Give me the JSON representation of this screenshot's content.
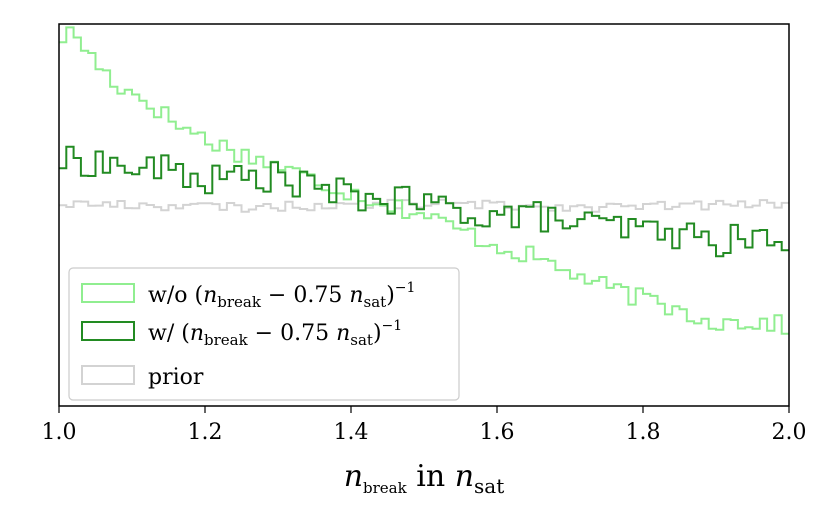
{
  "chart_data": {
    "type": "step-histogram",
    "title": "",
    "xlabel": {
      "main": "n",
      "sub": "break",
      "middle": " in ",
      "main2": "n",
      "sub2": "sat"
    },
    "ylabel": "",
    "xlim": [
      1.0,
      2.0
    ],
    "ylim": [
      0,
      1.0
    ],
    "xticks": [
      "1.0",
      "1.2",
      "1.4",
      "1.6",
      "1.8",
      "2.0"
    ],
    "xtick_values": [
      1.0,
      1.2,
      1.4,
      1.6,
      1.8,
      2.0
    ],
    "bins": 100,
    "legend_position": "lower-left",
    "series": [
      {
        "name": "w/o",
        "legend": {
          "prefix": "w/o (",
          "n": "n",
          "sub1": "break",
          "mid": " − 0.75 ",
          "n2": "n",
          "sub2": "sat",
          "suffix": ")",
          "sup": "−1"
        },
        "color": "#90ee90",
        "anchors": [
          [
            1.0,
            0.96
          ],
          [
            1.02,
            0.98
          ],
          [
            1.05,
            0.9
          ],
          [
            1.08,
            0.84
          ],
          [
            1.12,
            0.8
          ],
          [
            1.16,
            0.74
          ],
          [
            1.2,
            0.7
          ],
          [
            1.25,
            0.66
          ],
          [
            1.3,
            0.63
          ],
          [
            1.35,
            0.59
          ],
          [
            1.4,
            0.56
          ],
          [
            1.45,
            0.53
          ],
          [
            1.5,
            0.5
          ],
          [
            1.55,
            0.46
          ],
          [
            1.6,
            0.42
          ],
          [
            1.65,
            0.39
          ],
          [
            1.7,
            0.35
          ],
          [
            1.75,
            0.31
          ],
          [
            1.8,
            0.28
          ],
          [
            1.85,
            0.25
          ],
          [
            1.9,
            0.22
          ],
          [
            1.95,
            0.22
          ],
          [
            2.0,
            0.21
          ]
        ]
      },
      {
        "name": "w/",
        "legend": {
          "prefix": "w/ (",
          "n": "n",
          "sub1": "break",
          "mid": " − 0.75 ",
          "n2": "n",
          "sub2": "sat",
          "suffix": ")",
          "sup": "−1"
        },
        "color": "#228b22",
        "anchors": [
          [
            1.0,
            0.64
          ],
          [
            1.05,
            0.64
          ],
          [
            1.1,
            0.62
          ],
          [
            1.15,
            0.62
          ],
          [
            1.2,
            0.59
          ],
          [
            1.25,
            0.6
          ],
          [
            1.3,
            0.6
          ],
          [
            1.35,
            0.57
          ],
          [
            1.4,
            0.55
          ],
          [
            1.45,
            0.54
          ],
          [
            1.5,
            0.53
          ],
          [
            1.55,
            0.51
          ],
          [
            1.6,
            0.5
          ],
          [
            1.65,
            0.5
          ],
          [
            1.7,
            0.48
          ],
          [
            1.75,
            0.47
          ],
          [
            1.8,
            0.46
          ],
          [
            1.85,
            0.45
          ],
          [
            1.9,
            0.43
          ],
          [
            1.95,
            0.44
          ],
          [
            2.0,
            0.42
          ]
        ]
      },
      {
        "name": "prior",
        "legend": {
          "prefix": "prior"
        },
        "color": "#d3d3d3",
        "anchors": [
          [
            1.0,
            0.53
          ],
          [
            1.25,
            0.52
          ],
          [
            1.5,
            0.53
          ],
          [
            1.75,
            0.52
          ],
          [
            2.0,
            0.53
          ]
        ]
      }
    ]
  }
}
